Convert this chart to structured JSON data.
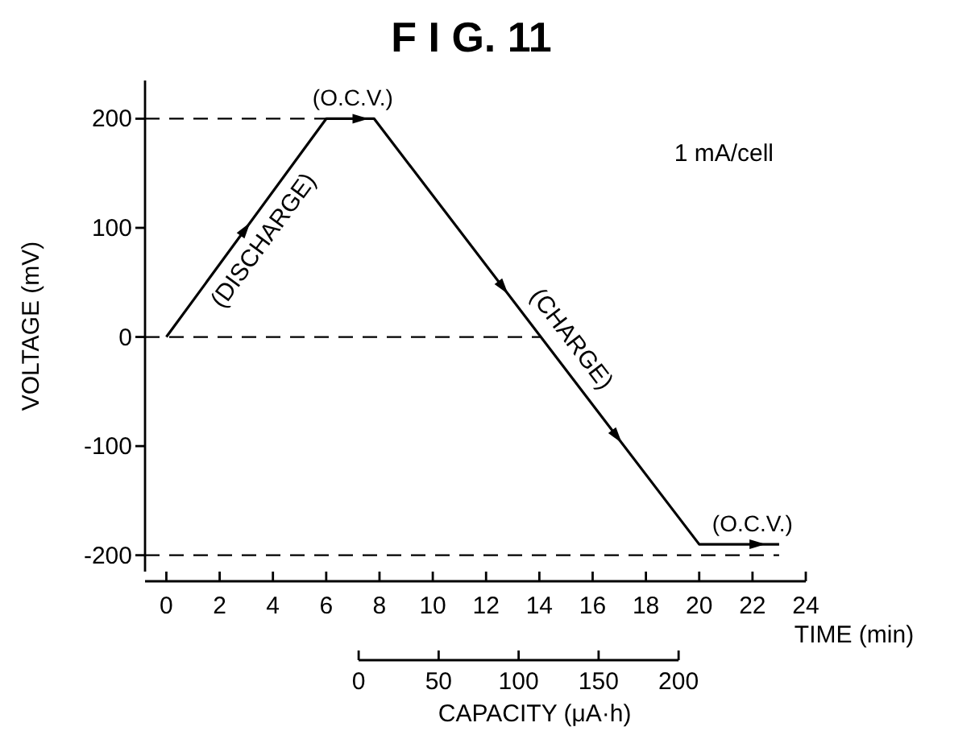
{
  "chart_data": {
    "type": "line",
    "title": "F I G. 11",
    "xlabel": "TIME (min)",
    "ylabel": "VOLTAGE (mV)",
    "x2label": "CAPACITY (μA·h)",
    "x": [
      0,
      6,
      7.8,
      20,
      23
    ],
    "series": [
      {
        "color": "#000000",
        "values": [
          0,
          200,
          200,
          -190,
          -190
        ]
      }
    ],
    "xlim": [
      -0.8,
      24
    ],
    "xticks": [
      0,
      2,
      4,
      6,
      8,
      10,
      12,
      14,
      16,
      18,
      20,
      22,
      24
    ],
    "ylim": [
      -215,
      235
    ],
    "yticks": [
      -200,
      -100,
      0,
      100,
      200
    ],
    "x2lim": [
      0,
      200
    ],
    "x2ticks": [
      0,
      50,
      100,
      150,
      200
    ],
    "ref_lines": [
      {
        "axis": "y",
        "value": 200,
        "line_style": "dashed"
      },
      {
        "axis": "y",
        "value": 0,
        "line_style": "dashed"
      },
      {
        "axis": "y",
        "value": -200,
        "line_style": "dashed"
      }
    ],
    "annotations": [
      {
        "text": "(O.C.V.)",
        "x": 7,
        "y": 200
      },
      {
        "text": "(DISCHARGE)",
        "x": 3,
        "y": 100
      },
      {
        "text": "(CHARGE)",
        "x": 14.5,
        "y": -15
      },
      {
        "text": "(O.C.V.)",
        "x": 22,
        "y": -190
      },
      "1 mA/cell"
    ],
    "grid": false,
    "line_style": "solid"
  }
}
